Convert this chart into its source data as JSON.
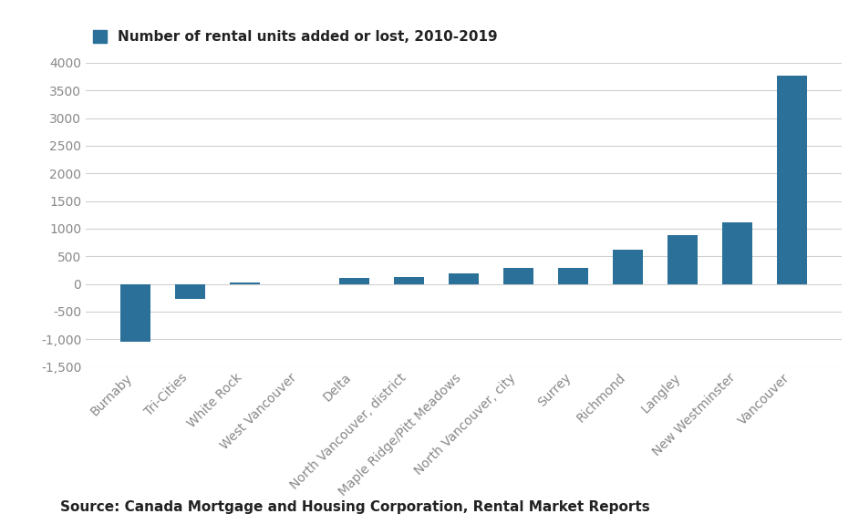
{
  "categories": [
    "Burnaby",
    "Tri-Cities",
    "White Rock",
    "West Vancouver",
    "Delta",
    "North Vancouver, district",
    "Maple Ridge/Pitt Meadows",
    "North Vancouver, city",
    "Surrey",
    "Richmond",
    "Langley",
    "New Westminster",
    "Vancouver"
  ],
  "values": [
    -1050,
    -275,
    30,
    -5,
    100,
    130,
    185,
    295,
    290,
    625,
    890,
    1115,
    3775
  ],
  "bar_color": "#2a7099",
  "legend_label": "Number of rental units added or lost, 2010-2019",
  "source_text": "Source: Canada Mortgage and Housing Corporation, Rental Market Reports",
  "ylim": [
    -1500,
    4000
  ],
  "yticks": [
    -1500,
    -1000,
    -500,
    0,
    500,
    1000,
    1500,
    2000,
    2500,
    3000,
    3500,
    4000
  ],
  "background_color": "#ffffff",
  "grid_color": "#d0d0d0",
  "legend_fontsize": 11,
  "tick_fontsize": 10,
  "source_fontsize": 11
}
